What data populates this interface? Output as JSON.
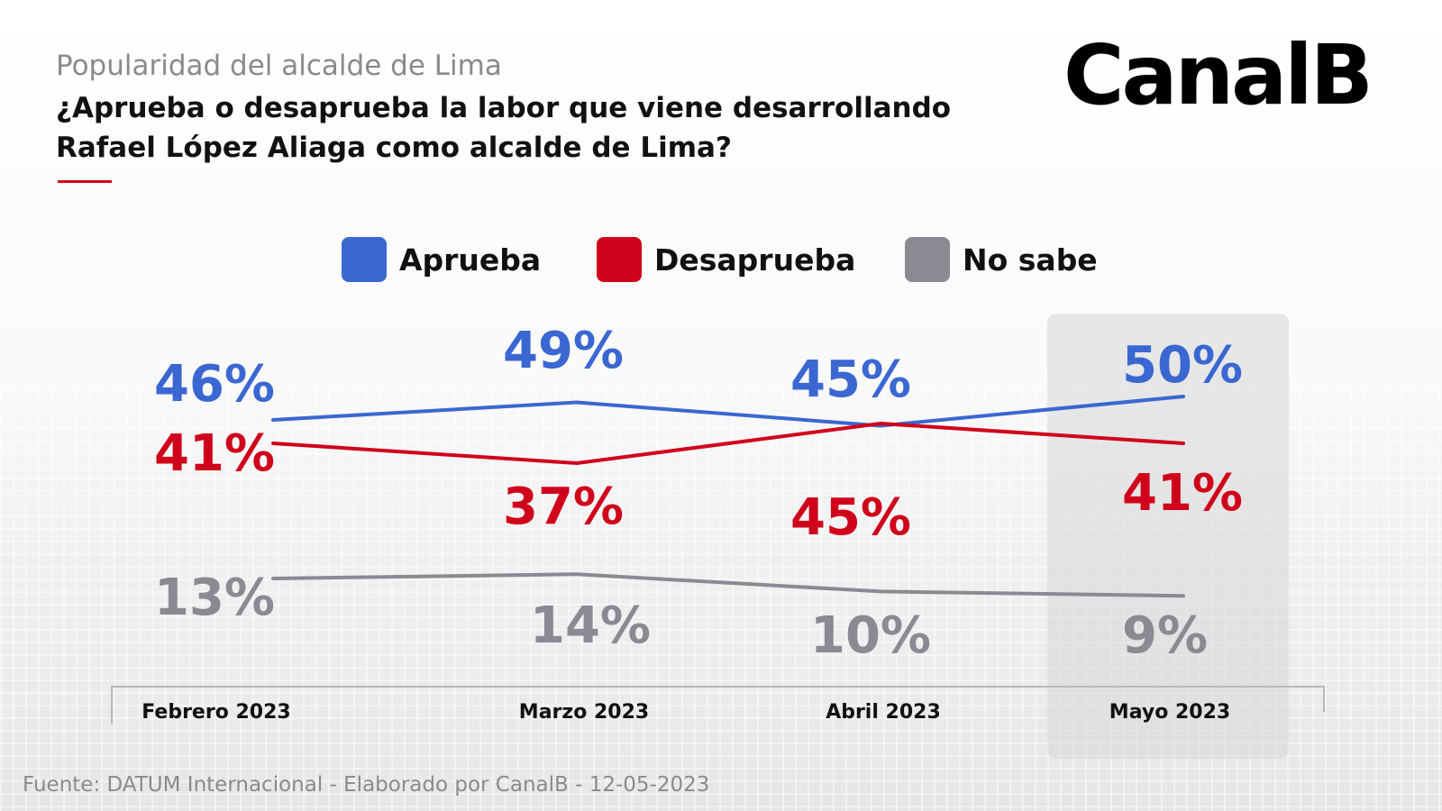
{
  "header": {
    "subtitle": "Popularidad del alcalde de Lima",
    "question": "¿Aprueba o desaprueba la labor que viene desarrollando Rafael López Aliaga como alcalde de Lima?",
    "logo": "CanalB"
  },
  "legend": [
    {
      "label": "Aprueba",
      "color": "#3a67d1"
    },
    {
      "label": "Desaprueba",
      "color": "#d0021b"
    },
    {
      "label": "No sabe",
      "color": "#8b8a93"
    }
  ],
  "chart_data": {
    "type": "line",
    "title": "Popularidad del alcalde de Lima",
    "categories": [
      "Febrero 2023",
      "Marzo 2023",
      "Abril 2023",
      "Mayo 2023"
    ],
    "highlighted_category": "Mayo 2023",
    "series": [
      {
        "name": "Aprueba",
        "color": "#3a67d1",
        "values": [
          46,
          49,
          45,
          50
        ],
        "labels": [
          "46%",
          "49%",
          "45%",
          "50%"
        ]
      },
      {
        "name": "Desaprueba",
        "color": "#d0021b",
        "values": [
          41,
          37,
          45,
          41
        ],
        "labels": [
          "41%",
          "37%",
          "45%",
          "41%"
        ]
      },
      {
        "name": "No sabe",
        "color": "#8b8a93",
        "values": [
          13,
          14,
          10,
          9
        ],
        "labels": [
          "13%",
          "14%",
          "10%",
          "9%"
        ]
      }
    ],
    "grid": false,
    "legend_position": "top"
  },
  "footer": {
    "source": "Fuente: DATUM Internacional - Elaborado por CanalB - 12-05-2023"
  }
}
